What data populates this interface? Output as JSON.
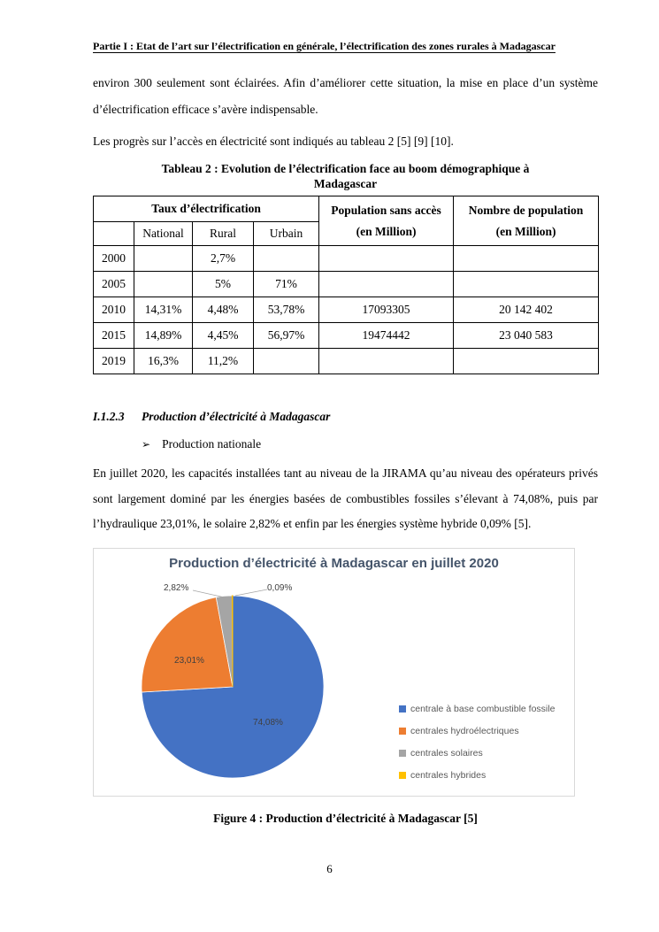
{
  "page": {
    "number": "6"
  },
  "header": {
    "title": "Partie I : Etat de l’art sur l’électrification en générale, l’électrification des zones rurales à Madagascar"
  },
  "paragraphs": {
    "p1": "environ 300 seulement sont éclairées. Afin d’améliorer cette situation, la mise en place d’un système d’électrification efficace s’avère indispensable.",
    "p2": "Les progrès sur l’accès en électricité sont indiqués au tableau 2 [5] [9] [10].",
    "p3": "En juillet 2020, les capacités installées tant au niveau de la JIRAMA qu’au niveau des opérateurs privés sont largement dominé par les énergies basées de combustibles fossiles s’élevant à 74,08%, puis par l’hydraulique 23,01%, le solaire 2,82% et enfin par les énergies système hybride 0,09% [5]."
  },
  "table": {
    "title_l1": "Tableau 2 : Evolution de l’électrification face au boom démographique à",
    "title_l2": "Madagascar",
    "header": {
      "group_taux": "Taux d’électrification",
      "col_national": "National",
      "col_rural": "Rural",
      "col_urbain": "Urbain",
      "col_pop_sans_acces_l1": "Population sans accès",
      "col_pop_sans_acces_l2": "(en Million)",
      "col_nombre_pop_l1": "Nombre de population",
      "col_nombre_pop_l2": "(en Million)"
    },
    "rows": [
      {
        "year": "2000",
        "national": "",
        "rural": "2,7%",
        "urbain": "",
        "pop_sans_acces": "",
        "nombre_pop": ""
      },
      {
        "year": "2005",
        "national": "",
        "rural": "5%",
        "urbain": "71%",
        "pop_sans_acces": "",
        "nombre_pop": ""
      },
      {
        "year": "2010",
        "national": "14,31%",
        "rural": "4,48%",
        "urbain": "53,78%",
        "pop_sans_acces": "17093305",
        "nombre_pop": "20 142 402"
      },
      {
        "year": "2015",
        "national": "14,89%",
        "rural": "4,45%",
        "urbain": "56,97%",
        "pop_sans_acces": "19474442",
        "nombre_pop": "23 040 583"
      },
      {
        "year": "2019",
        "national": "16,3%",
        "rural": "11,2%",
        "urbain": "",
        "pop_sans_acces": "",
        "nombre_pop": ""
      }
    ]
  },
  "section": {
    "number": "I.1.2.3",
    "title": "Production d’électricité à Madagascar",
    "bullet_marker": "➢",
    "bullet_text": "Production nationale"
  },
  "chart_data": {
    "type": "pie",
    "title": "Production d’électricité à Madagascar en juillet 2020",
    "title_color": "#44546A",
    "legend_position": "right",
    "start_angle_deg": 0,
    "direction": "clockwise",
    "slices": [
      {
        "label": "centrale à base combustible fossile",
        "value": 74.08,
        "display": "74,08%",
        "color": "#4472C4"
      },
      {
        "label": "centrales hydroélectriques",
        "value": 23.01,
        "display": "23,01%",
        "color": "#ED7D31"
      },
      {
        "label": "centrales solaires",
        "value": 2.82,
        "display": "2,82%",
        "color": "#A5A5A5"
      },
      {
        "label": "centrales hybrides",
        "value": 0.09,
        "display": "0,09%",
        "color": "#FFC000"
      }
    ]
  },
  "figure_caption": "Figure 4 : Production d’électricité à Madagascar [5]"
}
